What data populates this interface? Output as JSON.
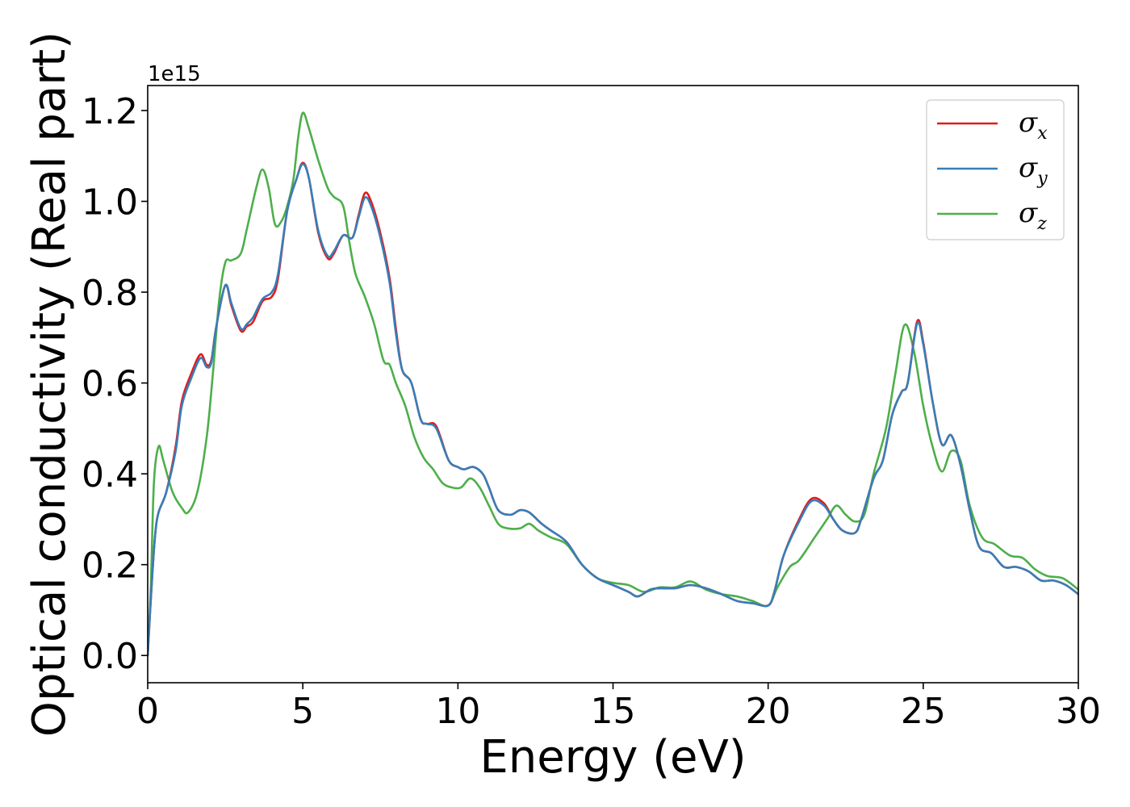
{
  "chart_data": {
    "type": "line",
    "title": "",
    "xlabel": "Energy (eV)",
    "ylabel": "Optical conductivity (Real part)",
    "y_offset_label": "1e15",
    "xlim": [
      0,
      30
    ],
    "ylim": [
      -0.06,
      1.255
    ],
    "x_ticks": [
      0,
      5,
      10,
      15,
      20,
      25,
      30
    ],
    "y_ticks": [
      0.0,
      0.2,
      0.4,
      0.6,
      0.8,
      1.0,
      1.2
    ],
    "x_tick_labels": [
      "0",
      "5",
      "10",
      "15",
      "20",
      "25",
      "30"
    ],
    "y_tick_labels": [
      "0.0",
      "0.2",
      "0.4",
      "0.6",
      "0.8",
      "1.0",
      "1.2"
    ],
    "grid": false,
    "legend_position": "top-right",
    "series": [
      {
        "name": "σx",
        "symbol": "σ",
        "subscript": "x",
        "color": "#e41a1c",
        "points": [
          [
            0,
            0
          ],
          [
            0.15,
            0.18
          ],
          [
            0.3,
            0.3
          ],
          [
            0.6,
            0.36
          ],
          [
            0.9,
            0.46
          ],
          [
            1.1,
            0.56
          ],
          [
            1.4,
            0.62
          ],
          [
            1.7,
            0.663
          ],
          [
            1.9,
            0.64
          ],
          [
            2.05,
            0.65
          ],
          [
            2.2,
            0.72
          ],
          [
            2.5,
            0.815
          ],
          [
            2.7,
            0.77
          ],
          [
            3.0,
            0.715
          ],
          [
            3.2,
            0.725
          ],
          [
            3.4,
            0.735
          ],
          [
            3.7,
            0.78
          ],
          [
            4.0,
            0.79
          ],
          [
            4.2,
            0.83
          ],
          [
            4.5,
            0.98
          ],
          [
            4.8,
            1.05
          ],
          [
            5.0,
            1.085
          ],
          [
            5.2,
            1.05
          ],
          [
            5.5,
            0.93
          ],
          [
            5.8,
            0.875
          ],
          [
            6.0,
            0.885
          ],
          [
            6.3,
            0.925
          ],
          [
            6.6,
            0.92
          ],
          [
            6.8,
            0.97
          ],
          [
            7.0,
            1.018
          ],
          [
            7.2,
            1.0
          ],
          [
            7.5,
            0.93
          ],
          [
            7.8,
            0.83
          ],
          [
            8.0,
            0.72
          ],
          [
            8.2,
            0.63
          ],
          [
            8.5,
            0.6
          ],
          [
            8.8,
            0.52
          ],
          [
            9.0,
            0.51
          ],
          [
            9.3,
            0.505
          ],
          [
            9.7,
            0.43
          ],
          [
            10.0,
            0.415
          ],
          [
            10.2,
            0.41
          ],
          [
            10.5,
            0.415
          ],
          [
            10.8,
            0.4
          ],
          [
            11.0,
            0.37
          ],
          [
            11.3,
            0.32
          ],
          [
            11.7,
            0.31
          ],
          [
            12.0,
            0.32
          ],
          [
            12.3,
            0.315
          ],
          [
            12.7,
            0.29
          ],
          [
            13.0,
            0.275
          ],
          [
            13.5,
            0.25
          ],
          [
            14.0,
            0.2
          ],
          [
            14.5,
            0.17
          ],
          [
            15.0,
            0.155
          ],
          [
            15.5,
            0.14
          ],
          [
            15.8,
            0.13
          ],
          [
            16.2,
            0.145
          ],
          [
            16.5,
            0.148
          ],
          [
            17.0,
            0.148
          ],
          [
            17.5,
            0.155
          ],
          [
            18.0,
            0.148
          ],
          [
            18.5,
            0.135
          ],
          [
            19.0,
            0.12
          ],
          [
            19.5,
            0.115
          ],
          [
            20.0,
            0.11
          ],
          [
            20.2,
            0.14
          ],
          [
            20.5,
            0.22
          ],
          [
            21.0,
            0.3
          ],
          [
            21.4,
            0.345
          ],
          [
            21.8,
            0.335
          ],
          [
            22.1,
            0.3
          ],
          [
            22.4,
            0.275
          ],
          [
            22.8,
            0.27
          ],
          [
            23.0,
            0.3
          ],
          [
            23.4,
            0.39
          ],
          [
            23.7,
            0.43
          ],
          [
            24.0,
            0.53
          ],
          [
            24.3,
            0.58
          ],
          [
            24.5,
            0.6
          ],
          [
            24.8,
            0.735
          ],
          [
            25.0,
            0.69
          ],
          [
            25.3,
            0.56
          ],
          [
            25.6,
            0.465
          ],
          [
            25.9,
            0.485
          ],
          [
            26.2,
            0.42
          ],
          [
            26.5,
            0.32
          ],
          [
            26.8,
            0.24
          ],
          [
            27.2,
            0.225
          ],
          [
            27.6,
            0.195
          ],
          [
            28.0,
            0.195
          ],
          [
            28.4,
            0.185
          ],
          [
            28.8,
            0.165
          ],
          [
            29.2,
            0.165
          ],
          [
            29.6,
            0.155
          ],
          [
            30.0,
            0.135
          ]
        ]
      },
      {
        "name": "σy",
        "symbol": "σ",
        "subscript": "y",
        "color": "#377eb8",
        "points": [
          [
            0,
            0
          ],
          [
            0.15,
            0.18
          ],
          [
            0.3,
            0.3
          ],
          [
            0.6,
            0.36
          ],
          [
            0.9,
            0.45
          ],
          [
            1.1,
            0.55
          ],
          [
            1.4,
            0.61
          ],
          [
            1.7,
            0.655
          ],
          [
            1.9,
            0.635
          ],
          [
            2.05,
            0.645
          ],
          [
            2.2,
            0.72
          ],
          [
            2.5,
            0.815
          ],
          [
            2.7,
            0.775
          ],
          [
            3.0,
            0.72
          ],
          [
            3.2,
            0.73
          ],
          [
            3.4,
            0.745
          ],
          [
            3.7,
            0.785
          ],
          [
            4.0,
            0.8
          ],
          [
            4.2,
            0.84
          ],
          [
            4.5,
            0.98
          ],
          [
            4.8,
            1.05
          ],
          [
            5.0,
            1.082
          ],
          [
            5.2,
            1.05
          ],
          [
            5.5,
            0.935
          ],
          [
            5.8,
            0.88
          ],
          [
            6.0,
            0.89
          ],
          [
            6.3,
            0.925
          ],
          [
            6.6,
            0.92
          ],
          [
            6.8,
            0.965
          ],
          [
            7.0,
            1.008
          ],
          [
            7.2,
            0.99
          ],
          [
            7.5,
            0.92
          ],
          [
            7.8,
            0.82
          ],
          [
            8.0,
            0.71
          ],
          [
            8.2,
            0.63
          ],
          [
            8.5,
            0.6
          ],
          [
            8.8,
            0.52
          ],
          [
            9.0,
            0.51
          ],
          [
            9.3,
            0.5
          ],
          [
            9.7,
            0.43
          ],
          [
            10.0,
            0.415
          ],
          [
            10.2,
            0.41
          ],
          [
            10.5,
            0.415
          ],
          [
            10.8,
            0.4
          ],
          [
            11.0,
            0.37
          ],
          [
            11.3,
            0.32
          ],
          [
            11.7,
            0.31
          ],
          [
            12.0,
            0.32
          ],
          [
            12.3,
            0.315
          ],
          [
            12.7,
            0.29
          ],
          [
            13.0,
            0.275
          ],
          [
            13.5,
            0.25
          ],
          [
            14.0,
            0.2
          ],
          [
            14.5,
            0.17
          ],
          [
            15.0,
            0.155
          ],
          [
            15.5,
            0.14
          ],
          [
            15.8,
            0.13
          ],
          [
            16.2,
            0.145
          ],
          [
            16.5,
            0.148
          ],
          [
            17.0,
            0.148
          ],
          [
            17.5,
            0.155
          ],
          [
            18.0,
            0.148
          ],
          [
            18.5,
            0.135
          ],
          [
            19.0,
            0.12
          ],
          [
            19.5,
            0.115
          ],
          [
            20.0,
            0.11
          ],
          [
            20.2,
            0.14
          ],
          [
            20.5,
            0.22
          ],
          [
            21.0,
            0.295
          ],
          [
            21.4,
            0.34
          ],
          [
            21.8,
            0.33
          ],
          [
            22.1,
            0.3
          ],
          [
            22.4,
            0.275
          ],
          [
            22.8,
            0.27
          ],
          [
            23.0,
            0.3
          ],
          [
            23.4,
            0.39
          ],
          [
            23.7,
            0.43
          ],
          [
            24.0,
            0.53
          ],
          [
            24.3,
            0.58
          ],
          [
            24.5,
            0.6
          ],
          [
            24.8,
            0.73
          ],
          [
            25.0,
            0.685
          ],
          [
            25.3,
            0.56
          ],
          [
            25.6,
            0.465
          ],
          [
            25.9,
            0.485
          ],
          [
            26.2,
            0.42
          ],
          [
            26.5,
            0.32
          ],
          [
            26.8,
            0.24
          ],
          [
            27.2,
            0.225
          ],
          [
            27.6,
            0.195
          ],
          [
            28.0,
            0.195
          ],
          [
            28.4,
            0.185
          ],
          [
            28.8,
            0.165
          ],
          [
            29.2,
            0.165
          ],
          [
            29.6,
            0.155
          ],
          [
            30.0,
            0.135
          ]
        ]
      },
      {
        "name": "σz",
        "symbol": "σ",
        "subscript": "z",
        "color": "#4daf4a",
        "points": [
          [
            0,
            0
          ],
          [
            0.1,
            0.15
          ],
          [
            0.2,
            0.38
          ],
          [
            0.35,
            0.46
          ],
          [
            0.5,
            0.43
          ],
          [
            0.8,
            0.36
          ],
          [
            1.1,
            0.325
          ],
          [
            1.3,
            0.315
          ],
          [
            1.6,
            0.36
          ],
          [
            1.9,
            0.48
          ],
          [
            2.1,
            0.62
          ],
          [
            2.3,
            0.78
          ],
          [
            2.5,
            0.865
          ],
          [
            2.7,
            0.87
          ],
          [
            3.0,
            0.885
          ],
          [
            3.2,
            0.94
          ],
          [
            3.5,
            1.03
          ],
          [
            3.7,
            1.07
          ],
          [
            3.9,
            1.03
          ],
          [
            4.1,
            0.95
          ],
          [
            4.3,
            0.955
          ],
          [
            4.5,
            0.99
          ],
          [
            4.7,
            1.05
          ],
          [
            4.85,
            1.14
          ],
          [
            5.0,
            1.195
          ],
          [
            5.2,
            1.16
          ],
          [
            5.5,
            1.09
          ],
          [
            5.8,
            1.03
          ],
          [
            6.0,
            1.01
          ],
          [
            6.3,
            0.99
          ],
          [
            6.5,
            0.91
          ],
          [
            6.7,
            0.84
          ],
          [
            7.0,
            0.79
          ],
          [
            7.3,
            0.73
          ],
          [
            7.6,
            0.65
          ],
          [
            7.8,
            0.64
          ],
          [
            8.0,
            0.6
          ],
          [
            8.3,
            0.55
          ],
          [
            8.6,
            0.48
          ],
          [
            8.9,
            0.435
          ],
          [
            9.2,
            0.41
          ],
          [
            9.5,
            0.38
          ],
          [
            9.8,
            0.37
          ],
          [
            10.1,
            0.37
          ],
          [
            10.4,
            0.39
          ],
          [
            10.7,
            0.37
          ],
          [
            11.0,
            0.33
          ],
          [
            11.3,
            0.29
          ],
          [
            11.6,
            0.28
          ],
          [
            12.0,
            0.28
          ],
          [
            12.3,
            0.29
          ],
          [
            12.6,
            0.275
          ],
          [
            13.0,
            0.26
          ],
          [
            13.5,
            0.245
          ],
          [
            14.0,
            0.2
          ],
          [
            14.5,
            0.17
          ],
          [
            15.0,
            0.16
          ],
          [
            15.5,
            0.155
          ],
          [
            16.0,
            0.14
          ],
          [
            16.5,
            0.15
          ],
          [
            17.0,
            0.15
          ],
          [
            17.5,
            0.163
          ],
          [
            18.0,
            0.145
          ],
          [
            18.5,
            0.135
          ],
          [
            19.0,
            0.13
          ],
          [
            19.5,
            0.12
          ],
          [
            20.0,
            0.11
          ],
          [
            20.3,
            0.15
          ],
          [
            20.7,
            0.195
          ],
          [
            21.0,
            0.21
          ],
          [
            21.5,
            0.26
          ],
          [
            21.9,
            0.3
          ],
          [
            22.2,
            0.33
          ],
          [
            22.5,
            0.31
          ],
          [
            22.8,
            0.295
          ],
          [
            23.1,
            0.31
          ],
          [
            23.4,
            0.4
          ],
          [
            23.8,
            0.5
          ],
          [
            24.1,
            0.62
          ],
          [
            24.4,
            0.728
          ],
          [
            24.7,
            0.67
          ],
          [
            25.0,
            0.55
          ],
          [
            25.3,
            0.46
          ],
          [
            25.6,
            0.405
          ],
          [
            25.9,
            0.45
          ],
          [
            26.2,
            0.43
          ],
          [
            26.5,
            0.33
          ],
          [
            26.9,
            0.26
          ],
          [
            27.3,
            0.245
          ],
          [
            27.8,
            0.22
          ],
          [
            28.2,
            0.215
          ],
          [
            28.6,
            0.19
          ],
          [
            29.0,
            0.175
          ],
          [
            29.5,
            0.17
          ],
          [
            30.0,
            0.145
          ]
        ]
      }
    ]
  }
}
